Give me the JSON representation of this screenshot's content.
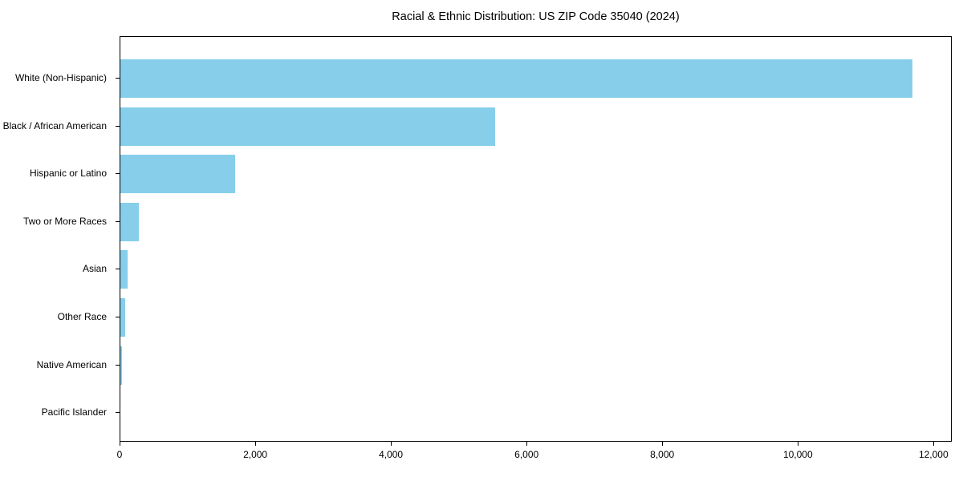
{
  "page": {
    "background": "#ffffff"
  },
  "chart_data": {
    "type": "bar",
    "orientation": "horizontal",
    "title": "Racial & Ethnic Distribution: US ZIP Code 35040 (2024)",
    "categories": [
      "White (Non-Hispanic)",
      "Black / African American",
      "Hispanic or Latino",
      "Two or More Races",
      "Asian",
      "Other Race",
      "Native American",
      "Pacific Islander"
    ],
    "values": [
      11670,
      5520,
      1690,
      275,
      105,
      65,
      20,
      0
    ],
    "title_text": "Racial & Ethnic Distribution: US ZIP Code 35040 (2024)",
    "xlabel": "",
    "ylabel": "",
    "xlim": [
      0,
      12268
    ],
    "x_ticks": [
      0,
      2000,
      4000,
      6000,
      8000,
      10000,
      12000
    ],
    "x_tick_labels": [
      "0",
      "2,000",
      "4,000",
      "6,000",
      "8,000",
      "10,000",
      "12,000"
    ],
    "bar_color": "#87CEEB",
    "axis_color": "#000000",
    "grid": false,
    "legend": false
  }
}
